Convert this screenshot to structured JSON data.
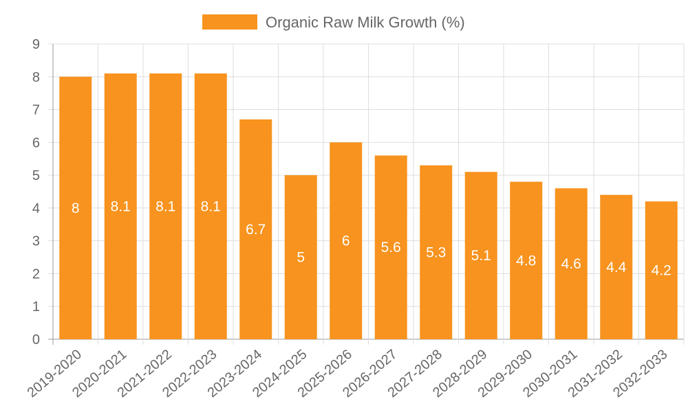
{
  "chart_data": {
    "type": "bar",
    "title": "",
    "xlabel": "",
    "ylabel": "",
    "ylim": [
      0,
      9
    ],
    "yticks": [
      0,
      1,
      2,
      3,
      4,
      5,
      6,
      7,
      8,
      9
    ],
    "grid": true,
    "legend_position": "top-center",
    "categories": [
      "2019-2020",
      "2020-2021",
      "2021-2022",
      "2022-2023",
      "2023-2024",
      "2024-2025",
      "2025-2026",
      "2026-2027",
      "2027-2028",
      "2028-2029",
      "2029-2030",
      "2030-2031",
      "2031-2032",
      "2032-2033"
    ],
    "series": [
      {
        "name": "Organic Raw Milk Growth (%)",
        "color": "#f7931e",
        "values": [
          8,
          8.1,
          8.1,
          8.1,
          6.7,
          5,
          6,
          5.6,
          5.3,
          5.1,
          4.8,
          4.6,
          4.4,
          4.2
        ]
      }
    ],
    "colors": {
      "bar": "#f7931e",
      "grid": "#dddddd",
      "axis": "#999999",
      "text": "#666666",
      "label": "#ffffff"
    }
  }
}
